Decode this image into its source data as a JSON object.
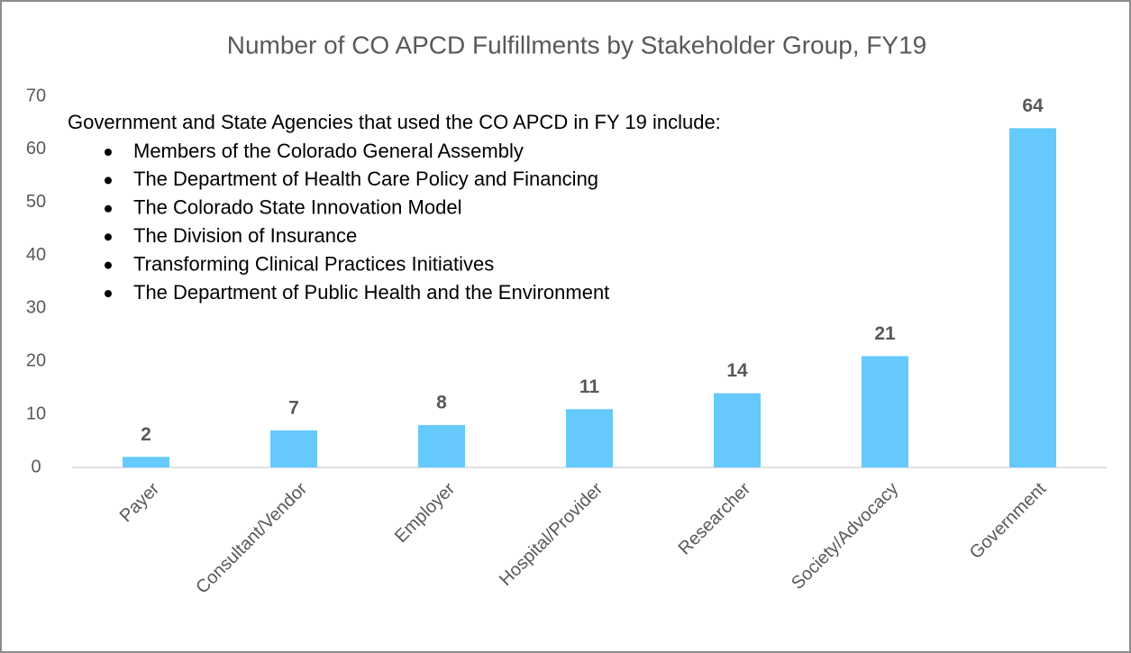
{
  "chart_data": {
    "type": "bar",
    "title": "Number of CO APCD Fulfillments by Stakeholder Group, FY19",
    "categories": [
      "Payer",
      "Consultant/Vendor",
      "Employer",
      "Hospital/Provider",
      "Researcher",
      "Society/Advocacy",
      "Government"
    ],
    "values": [
      2,
      7,
      8,
      11,
      14,
      21,
      64
    ],
    "color": "#66c9fb",
    "ylim": [
      0,
      70
    ],
    "yticks": [
      0,
      10,
      20,
      30,
      40,
      50,
      60,
      70
    ],
    "grid": false,
    "annotation": {
      "text": "Government and State Agencies that used the CO APCD in FY 19 include:",
      "items": [
        "Members of the Colorado General Assembly",
        "The Department of Health Care Policy and Financing",
        "The Colorado State Innovation Model",
        "The Division of Insurance",
        "Transforming Clinical Practices Initiatives",
        "The Department of Public Health and the Environment"
      ]
    }
  }
}
